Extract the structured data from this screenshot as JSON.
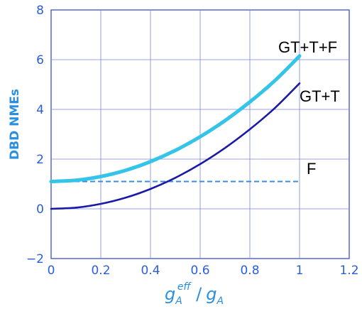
{
  "chart_data": {
    "type": "line",
    "xlabel": {
      "main": "g",
      "sub1": "A",
      "sup": "eff",
      "sep": " /",
      "main2": "g",
      "sub2": "A"
    },
    "ylabel": "DBD NMEs",
    "xlim": [
      0,
      1.2
    ],
    "ylim": [
      -2,
      8
    ],
    "xticks": [
      "0",
      "0.2",
      "0.4",
      "0.6",
      "0.8",
      "1",
      "1.2"
    ],
    "yticks": [
      "−2",
      "0",
      "2",
      "4",
      "6",
      "8"
    ],
    "grid": true,
    "series": [
      {
        "name": "GT+T+F",
        "color": "#33c4e8",
        "style": "solid",
        "x": [
          0,
          0.1,
          0.2,
          0.3,
          0.4,
          0.5,
          0.6,
          0.7,
          0.8,
          0.9,
          1.0
        ],
        "y": [
          1.1,
          1.15,
          1.3,
          1.55,
          1.9,
          2.35,
          2.9,
          3.55,
          4.3,
          5.15,
          6.15
        ]
      },
      {
        "name": "GT+T",
        "color": "#1a1aa6",
        "style": "solid",
        "x": [
          0,
          0.1,
          0.2,
          0.3,
          0.4,
          0.5,
          0.6,
          0.7,
          0.8,
          0.9,
          1.0
        ],
        "y": [
          0.0,
          0.05,
          0.2,
          0.45,
          0.8,
          1.25,
          1.8,
          2.45,
          3.2,
          4.05,
          5.05
        ]
      },
      {
        "name": "F",
        "color": "#3a8fd8",
        "style": "dashed",
        "x": [
          0,
          1.0
        ],
        "y": [
          1.1,
          1.1
        ]
      }
    ]
  }
}
